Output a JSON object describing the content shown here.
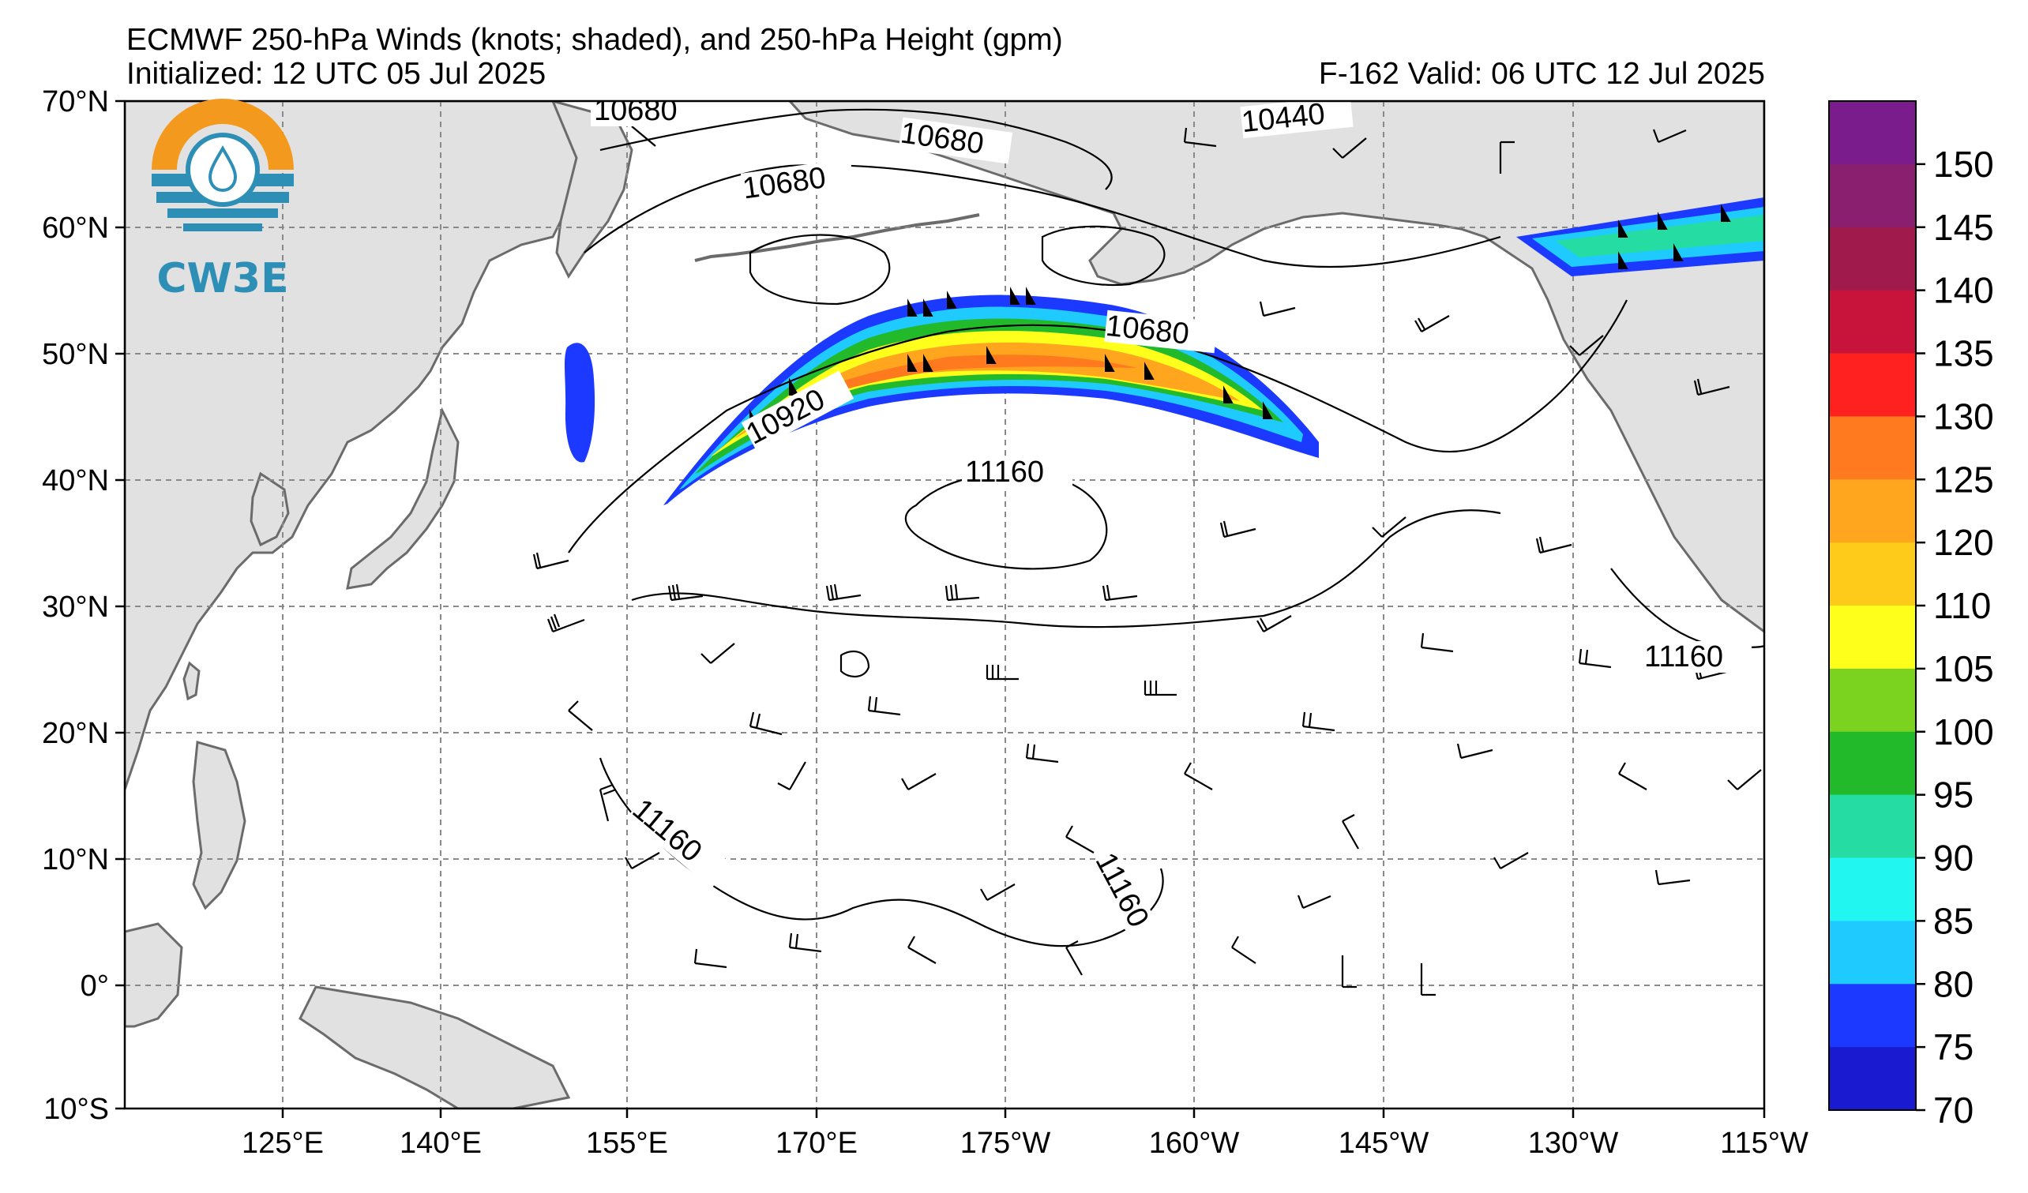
{
  "header": {
    "title": "ECMWF 250-hPa Winds (knots; shaded), and 250-hPa Height (gpm)",
    "initialized": "Initialized: 12 UTC 05 Jul 2025",
    "valid": "F-162  Valid: 06 UTC 12 Jul 2025"
  },
  "logo": {
    "text": "CW3E",
    "colors": {
      "sun": "#f39a1e",
      "water": "#2e8fb6"
    }
  },
  "axes": {
    "lat_labels": [
      "70°N",
      "60°N",
      "50°N",
      "40°N",
      "30°N",
      "20°N",
      "10°N",
      "0°",
      "10°S"
    ],
    "lon_labels": [
      "125°E",
      "140°E",
      "155°E",
      "170°E",
      "175°W",
      "160°W",
      "145°W",
      "130°W",
      "115°W"
    ]
  },
  "colorbar": {
    "labels": [
      "150",
      "145",
      "140",
      "135",
      "130",
      "125",
      "120",
      "110",
      "105",
      "100",
      "95",
      "90",
      "85",
      "80",
      "75",
      "70"
    ],
    "colors": [
      "#7a1c8c",
      "#8b1f6f",
      "#a01a4b",
      "#c8143a",
      "#ff2020",
      "#ff7a1f",
      "#ffa51e",
      "#ffcb1a",
      "#ffff1c",
      "#7bd31f",
      "#22b92b",
      "#25dda3",
      "#21f6f0",
      "#1fcaff",
      "#1c39ff",
      "#1a1ad0"
    ]
  },
  "contour_labels": [
    "10680",
    "10680",
    "10680",
    "10440",
    "10680",
    "10920",
    "11160",
    "11160",
    "11160",
    "11160"
  ],
  "map_colors": {
    "land": "#e1e1e1",
    "coast": "#6b6b6b",
    "grid": "#8a8a8a"
  }
}
